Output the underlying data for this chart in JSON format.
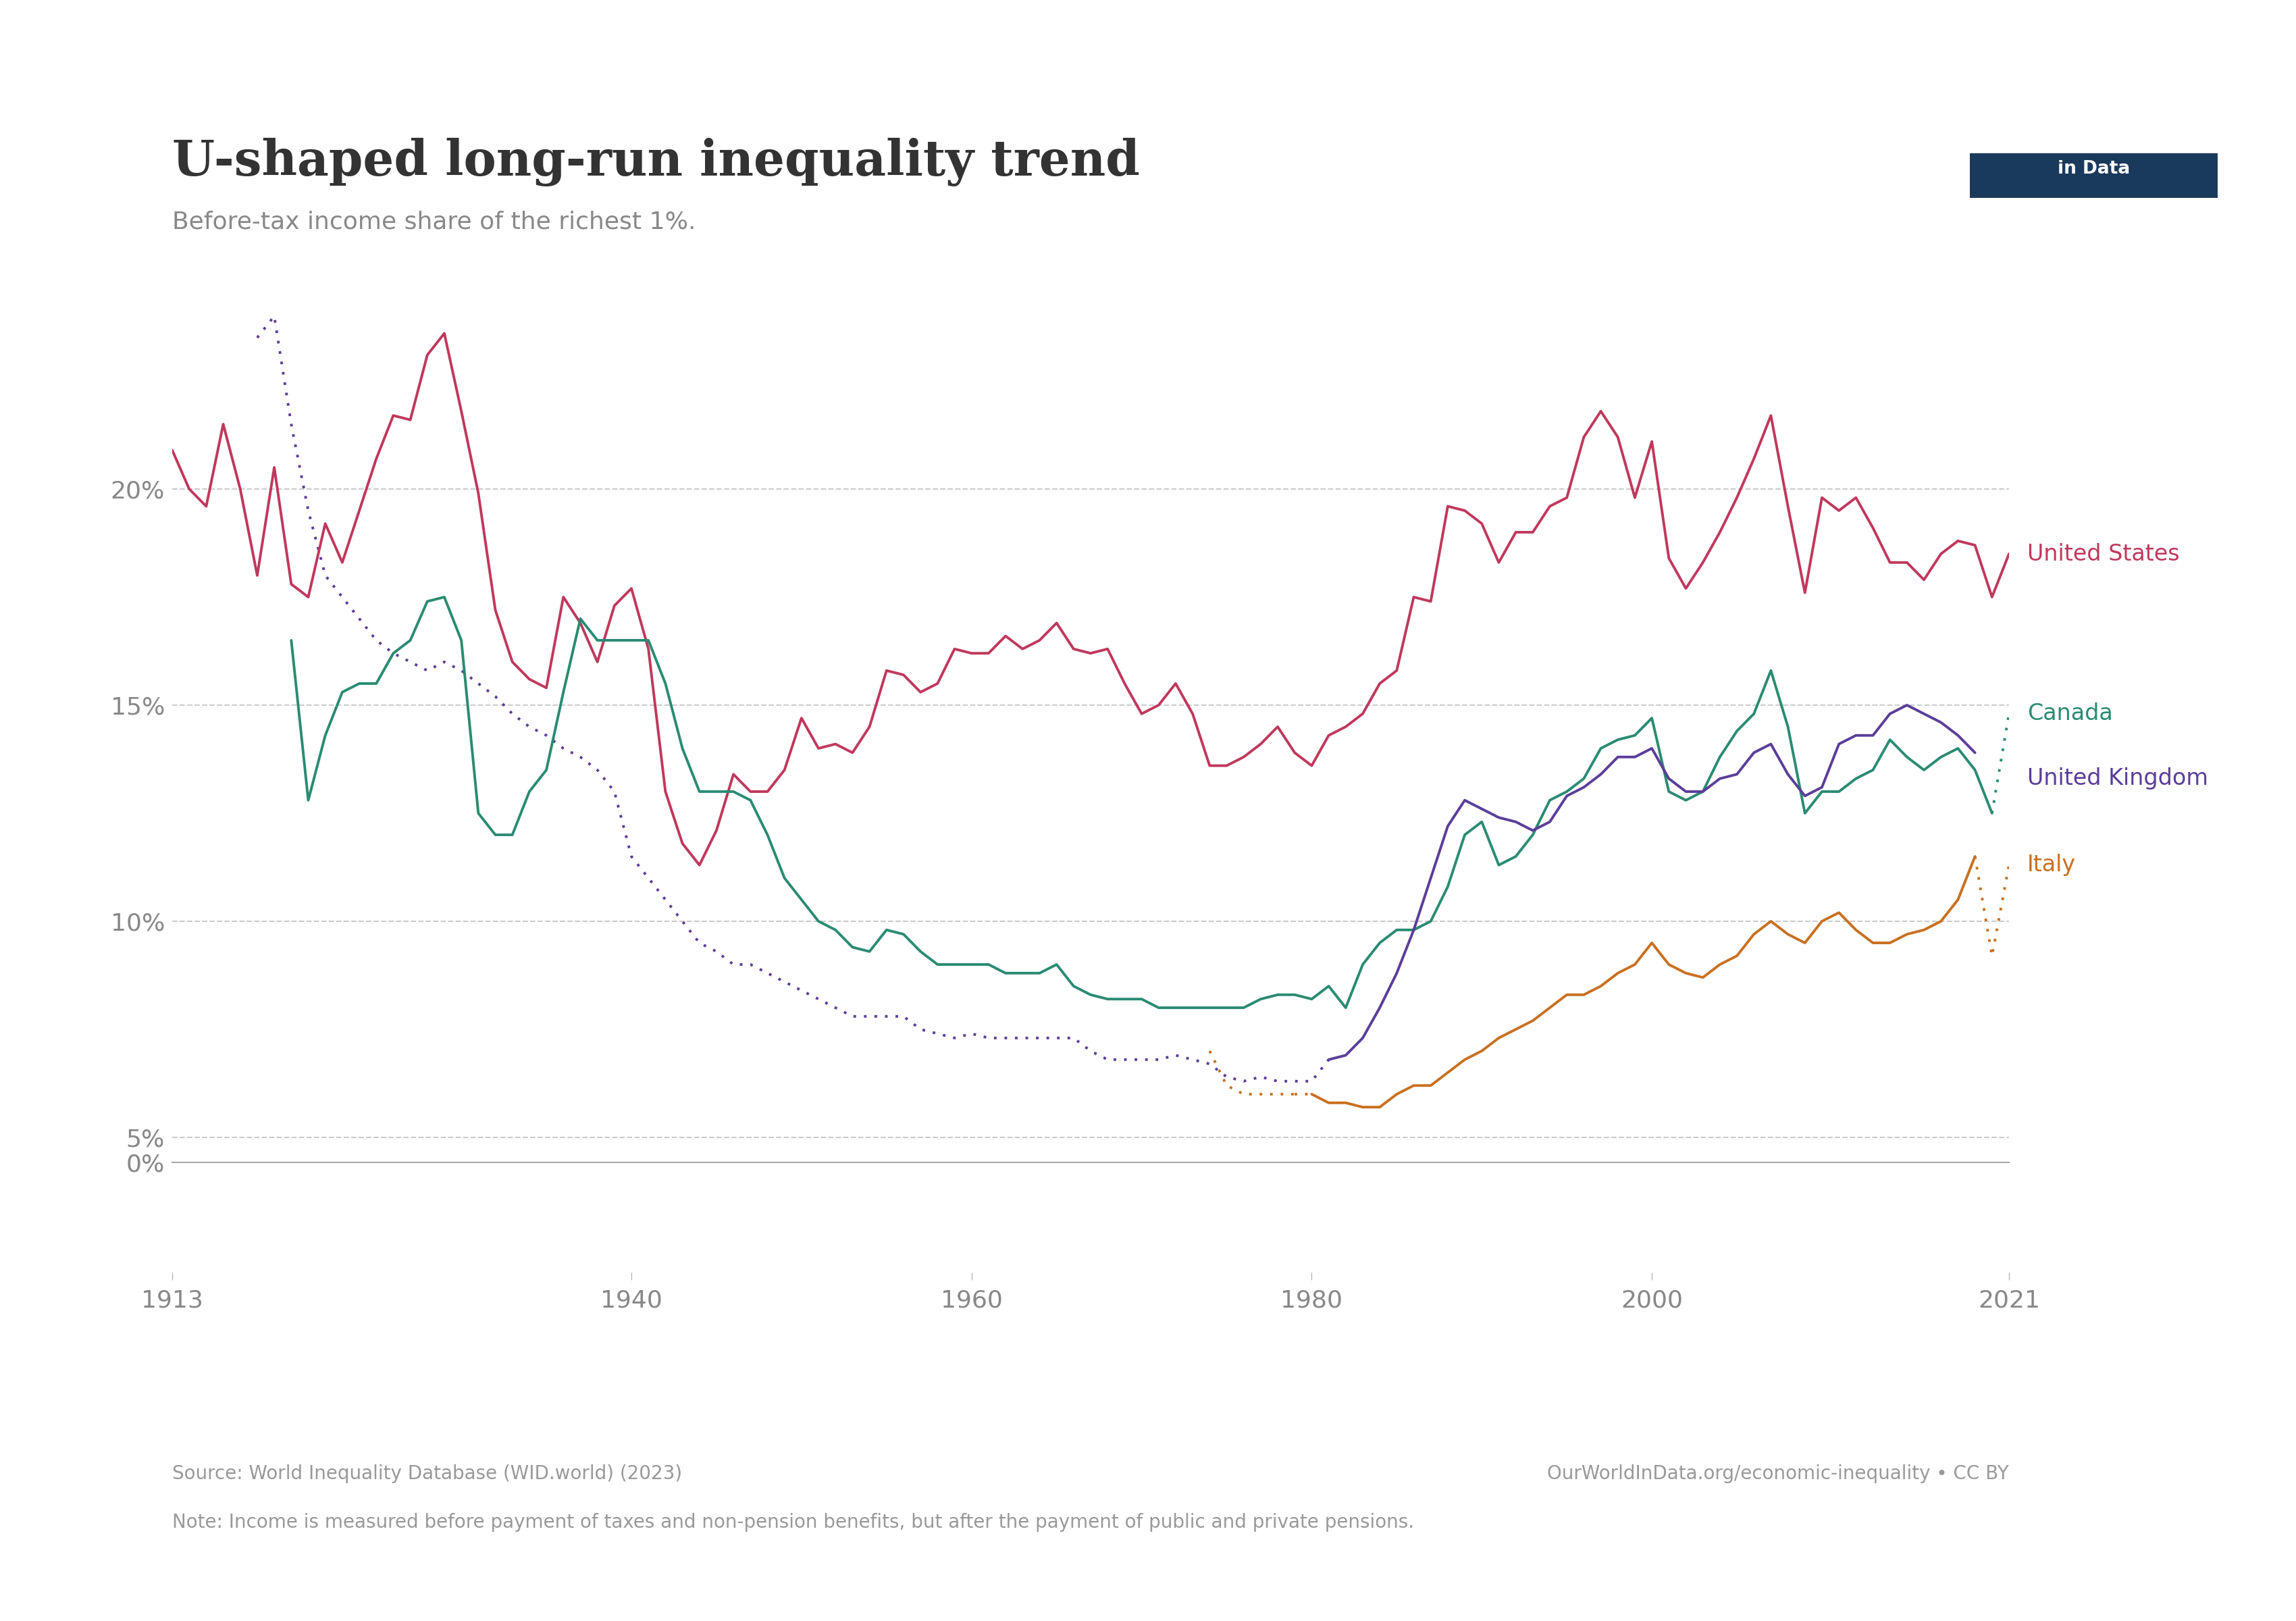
{
  "title": "U-shaped long-run inequality trend",
  "subtitle": "Before-tax income share of the richest 1%.",
  "source_text": "Source: World Inequality Database (WID.world) (2023)",
  "source_right": "OurWorldInData.org/economic-inequality • CC BY",
  "note_text": "Note: Income is measured before payment of taxes and non-pension benefits, but after the payment of public and private pensions.",
  "xlim": [
    1913,
    2021
  ],
  "ylim_plot": [
    0.045,
    0.255
  ],
  "yticks": [
    0.05,
    0.1,
    0.15,
    0.2
  ],
  "ytick_labels": [
    "5%",
    "10%",
    "15%",
    "20%"
  ],
  "xticks": [
    1913,
    1940,
    1960,
    1980,
    2000,
    2021
  ],
  "colors": {
    "us": "#c0385c",
    "canada": "#2a8b72",
    "uk": "#5b3d99",
    "italy": "#c87020",
    "grid": "#cccccc",
    "text_axis": "#888888",
    "title": "#333333",
    "subtitle": "#888888",
    "footer": "#999999",
    "spine": "#aaaaaa"
  },
  "us_data": {
    "years": [
      1913,
      1914,
      1915,
      1916,
      1917,
      1918,
      1919,
      1920,
      1921,
      1922,
      1923,
      1924,
      1925,
      1926,
      1927,
      1928,
      1929,
      1930,
      1931,
      1932,
      1933,
      1934,
      1935,
      1936,
      1937,
      1938,
      1939,
      1940,
      1941,
      1942,
      1943,
      1944,
      1945,
      1946,
      1947,
      1948,
      1949,
      1950,
      1951,
      1952,
      1953,
      1954,
      1955,
      1956,
      1957,
      1958,
      1959,
      1960,
      1961,
      1962,
      1963,
      1964,
      1965,
      1966,
      1967,
      1968,
      1969,
      1970,
      1971,
      1972,
      1973,
      1974,
      1975,
      1976,
      1977,
      1978,
      1979,
      1980,
      1981,
      1982,
      1983,
      1984,
      1985,
      1986,
      1987,
      1988,
      1989,
      1990,
      1991,
      1992,
      1993,
      1994,
      1995,
      1996,
      1997,
      1998,
      1999,
      2000,
      2001,
      2002,
      2003,
      2004,
      2005,
      2006,
      2007,
      2008,
      2009,
      2010,
      2011,
      2012,
      2013,
      2014,
      2015,
      2016,
      2017,
      2018,
      2019,
      2020,
      2021
    ],
    "values": [
      0.209,
      0.2,
      0.196,
      0.215,
      0.2,
      0.18,
      0.205,
      0.178,
      0.175,
      0.192,
      0.183,
      0.195,
      0.207,
      0.217,
      0.216,
      0.231,
      0.236,
      0.218,
      0.199,
      0.172,
      0.16,
      0.156,
      0.154,
      0.175,
      0.169,
      0.16,
      0.173,
      0.177,
      0.163,
      0.13,
      0.118,
      0.113,
      0.121,
      0.134,
      0.13,
      0.13,
      0.135,
      0.147,
      0.14,
      0.141,
      0.139,
      0.145,
      0.158,
      0.157,
      0.153,
      0.155,
      0.163,
      0.162,
      0.162,
      0.166,
      0.163,
      0.165,
      0.169,
      0.163,
      0.162,
      0.163,
      0.155,
      0.148,
      0.15,
      0.155,
      0.148,
      0.136,
      0.136,
      0.138,
      0.141,
      0.145,
      0.139,
      0.136,
      0.143,
      0.145,
      0.148,
      0.155,
      0.158,
      0.175,
      0.174,
      0.196,
      0.195,
      0.192,
      0.183,
      0.19,
      0.19,
      0.196,
      0.198,
      0.212,
      0.218,
      0.212,
      0.198,
      0.211,
      0.184,
      0.177,
      0.183,
      0.19,
      0.198,
      0.207,
      0.217,
      0.196,
      0.176,
      0.198,
      0.195,
      0.198,
      0.191,
      0.183,
      0.183,
      0.179,
      0.185,
      0.188,
      0.187,
      0.175,
      0.185
    ]
  },
  "canada_solid": {
    "years": [
      1920,
      1921,
      1922,
      1923,
      1924,
      1925,
      1926,
      1927,
      1928,
      1929,
      1930,
      1931,
      1932,
      1933,
      1934,
      1935,
      1936,
      1937,
      1938,
      1939,
      1940,
      1941,
      1942,
      1943,
      1944,
      1945,
      1946,
      1947,
      1948,
      1949,
      1950,
      1951,
      1952,
      1953,
      1954,
      1955,
      1956,
      1957,
      1958,
      1959,
      1960,
      1961,
      1962,
      1963,
      1964,
      1965,
      1966,
      1967,
      1968,
      1969,
      1970,
      1971,
      1972,
      1973,
      1974,
      1975,
      1976,
      1977,
      1978,
      1979,
      1980,
      1981,
      1982,
      1983,
      1984,
      1985,
      1986,
      1987,
      1988,
      1989,
      1990,
      1991,
      1992,
      1993,
      1994,
      1995,
      1996,
      1997,
      1998,
      1999,
      2000,
      2001,
      2002,
      2003,
      2004,
      2005,
      2006,
      2007,
      2008,
      2009,
      2010,
      2011,
      2012,
      2013,
      2014,
      2015,
      2016,
      2017,
      2018,
      2019,
      2020
    ],
    "values": [
      0.165,
      0.128,
      0.143,
      0.153,
      0.155,
      0.155,
      0.162,
      0.165,
      0.174,
      0.175,
      0.165,
      0.125,
      0.12,
      0.12,
      0.13,
      0.135,
      0.153,
      0.17,
      0.165,
      0.165,
      0.165,
      0.165,
      0.155,
      0.14,
      0.13,
      0.13,
      0.13,
      0.128,
      0.12,
      0.11,
      0.105,
      0.1,
      0.098,
      0.094,
      0.093,
      0.098,
      0.097,
      0.093,
      0.09,
      0.09,
      0.09,
      0.09,
      0.088,
      0.088,
      0.088,
      0.09,
      0.085,
      0.083,
      0.082,
      0.082,
      0.082,
      0.08,
      0.08,
      0.08,
      0.08,
      0.08,
      0.08,
      0.082,
      0.083,
      0.083,
      0.082,
      0.085,
      0.08,
      0.09,
      0.095,
      0.098,
      0.098,
      0.1,
      0.108,
      0.12,
      0.123,
      0.113,
      0.115,
      0.12,
      0.128,
      0.13,
      0.133,
      0.14,
      0.142,
      0.143,
      0.147,
      0.13,
      0.128,
      0.13,
      0.138,
      0.144,
      0.148,
      0.158,
      0.145,
      0.125,
      0.13,
      0.13,
      0.133,
      0.135,
      0.142,
      0.138,
      0.135,
      0.138,
      0.14,
      0.135,
      0.125
    ]
  },
  "canada_dotted": {
    "years": [
      2020,
      2021
    ],
    "values": [
      0.125,
      0.148
    ]
  },
  "uk_solid": {
    "years": [
      1981,
      1982,
      1983,
      1984,
      1985,
      1986,
      1987,
      1988,
      1989,
      1990,
      1991,
      1992,
      1993,
      1994,
      1995,
      1996,
      1997,
      1998,
      1999,
      2000,
      2001,
      2002,
      2003,
      2004,
      2005,
      2006,
      2007,
      2008,
      2009,
      2010,
      2011,
      2012,
      2013,
      2014,
      2015,
      2016,
      2017,
      2018,
      2019
    ],
    "values": [
      0.068,
      0.069,
      0.073,
      0.08,
      0.088,
      0.098,
      0.11,
      0.122,
      0.128,
      0.126,
      0.124,
      0.123,
      0.121,
      0.123,
      0.129,
      0.131,
      0.134,
      0.138,
      0.138,
      0.14,
      0.133,
      0.13,
      0.13,
      0.133,
      0.134,
      0.139,
      0.141,
      0.134,
      0.129,
      0.131,
      0.141,
      0.143,
      0.143,
      0.148,
      0.15,
      0.148,
      0.146,
      0.143,
      0.139
    ]
  },
  "uk_dotted": {
    "years": [
      1918,
      1919,
      1920,
      1921,
      1922,
      1923,
      1924,
      1925,
      1926,
      1927,
      1928,
      1929,
      1930,
      1931,
      1932,
      1933,
      1934,
      1935,
      1936,
      1937,
      1938,
      1939,
      1940,
      1941,
      1942,
      1943,
      1944,
      1945,
      1946,
      1947,
      1948,
      1949,
      1950,
      1951,
      1952,
      1953,
      1954,
      1955,
      1956,
      1957,
      1958,
      1959,
      1960,
      1961,
      1962,
      1963,
      1964,
      1965,
      1966,
      1967,
      1968,
      1969,
      1970,
      1971,
      1972,
      1973,
      1974,
      1975,
      1976,
      1977,
      1978,
      1979,
      1980,
      1981
    ],
    "values": [
      0.235,
      0.24,
      0.215,
      0.195,
      0.18,
      0.175,
      0.17,
      0.165,
      0.162,
      0.16,
      0.158,
      0.16,
      0.158,
      0.155,
      0.152,
      0.148,
      0.145,
      0.143,
      0.14,
      0.138,
      0.135,
      0.13,
      0.115,
      0.11,
      0.105,
      0.1,
      0.095,
      0.093,
      0.09,
      0.09,
      0.088,
      0.086,
      0.084,
      0.082,
      0.08,
      0.078,
      0.078,
      0.078,
      0.078,
      0.075,
      0.074,
      0.073,
      0.074,
      0.073,
      0.073,
      0.073,
      0.073,
      0.073,
      0.073,
      0.07,
      0.068,
      0.068,
      0.068,
      0.068,
      0.069,
      0.068,
      0.067,
      0.064,
      0.063,
      0.064,
      0.063,
      0.063,
      0.063,
      0.068
    ]
  },
  "italy_solid": {
    "years": [
      1980,
      1981,
      1982,
      1983,
      1984,
      1985,
      1986,
      1987,
      1988,
      1989,
      1990,
      1991,
      1992,
      1993,
      1994,
      1995,
      1996,
      1997,
      1998,
      1999,
      2000,
      2001,
      2002,
      2003,
      2004,
      2005,
      2006,
      2007,
      2008,
      2009,
      2010,
      2011,
      2012,
      2013,
      2014,
      2015,
      2016,
      2017,
      2018,
      2019
    ],
    "values": [
      0.06,
      0.058,
      0.058,
      0.057,
      0.057,
      0.06,
      0.062,
      0.062,
      0.065,
      0.068,
      0.07,
      0.073,
      0.075,
      0.077,
      0.08,
      0.083,
      0.083,
      0.085,
      0.088,
      0.09,
      0.095,
      0.09,
      0.088,
      0.087,
      0.09,
      0.092,
      0.097,
      0.1,
      0.097,
      0.095,
      0.1,
      0.102,
      0.098,
      0.095,
      0.095,
      0.097,
      0.098,
      0.1,
      0.105,
      0.115
    ]
  },
  "italy_dotted": {
    "years": [
      1974,
      1975,
      1976,
      1977,
      1978,
      1979,
      1980,
      2019,
      2020,
      2021
    ],
    "values": [
      0.07,
      0.062,
      0.06,
      0.06,
      0.06,
      0.06,
      0.06,
      0.115,
      0.092,
      0.113
    ]
  }
}
